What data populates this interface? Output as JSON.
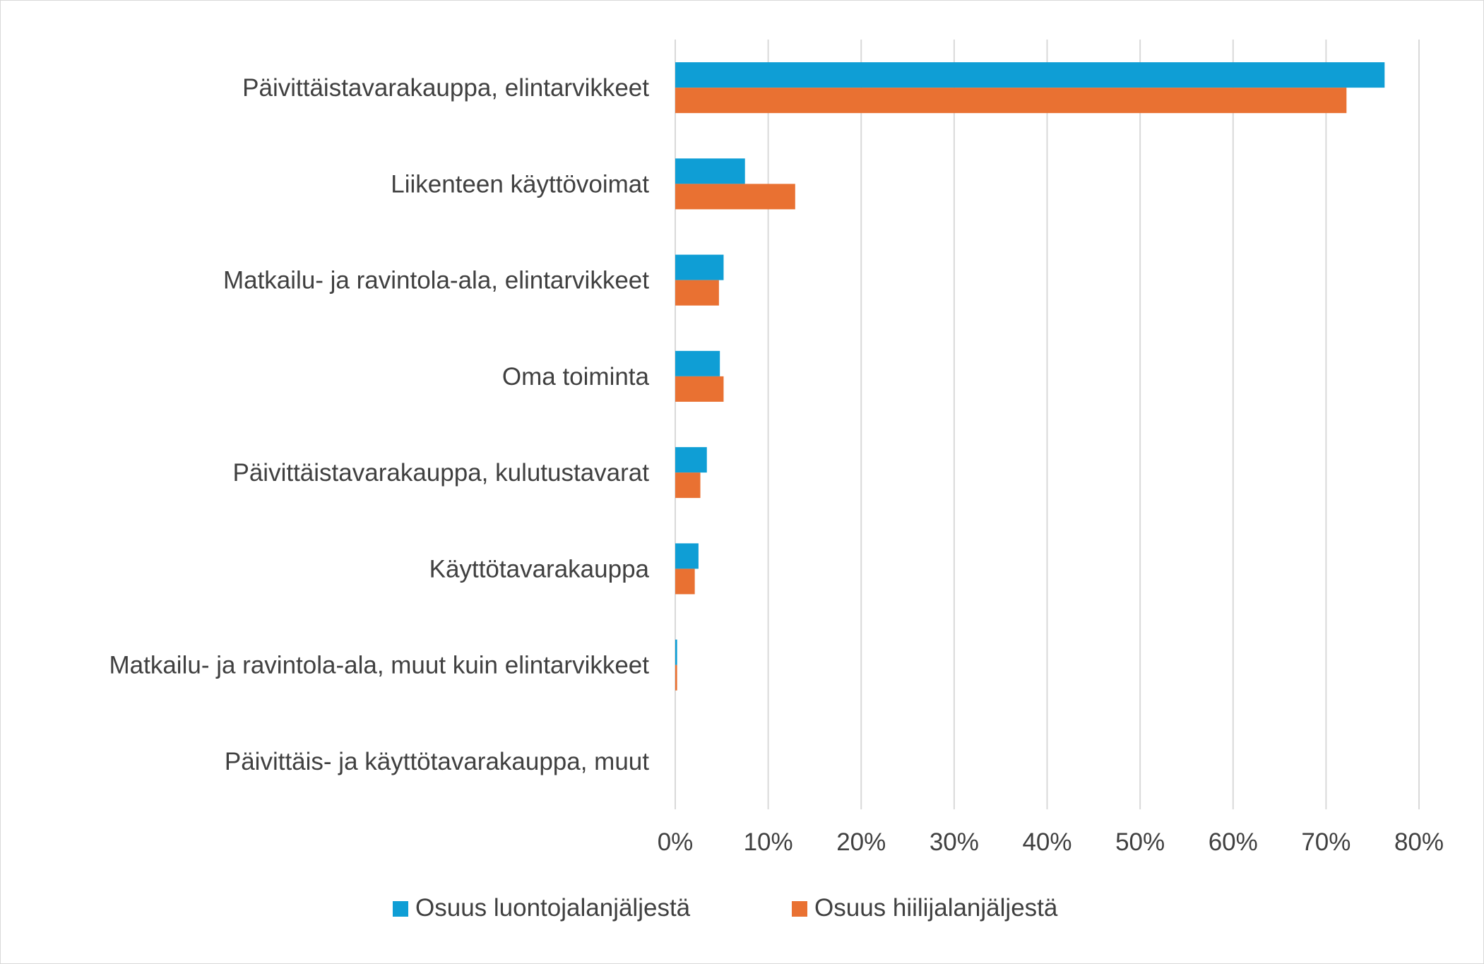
{
  "chart_data": {
    "type": "bar",
    "orientation": "horizontal",
    "categories": [
      "Päivittäistavarakauppa, elintarvikkeet",
      "Liikenteen käyttövoimat",
      "Matkailu- ja ravintola-ala, elintarvikkeet",
      "Oma toiminta",
      "Päivittäistavarakauppa, kulutustavarat",
      "Käyttötavarakauppa",
      "Matkailu- ja ravintola-ala, muut kuin elintarvikkeet",
      "Päivittäis- ja käyttötavarakauppa, muut"
    ],
    "series": [
      {
        "name": "Osuus luontojalanjäljestä",
        "color": "#0f9ed5",
        "values": [
          76.3,
          7.5,
          5.2,
          4.8,
          3.4,
          2.5,
          0.2,
          0.0
        ]
      },
      {
        "name": "Osuus hiilijalanjäljestä",
        "color": "#e97132",
        "values": [
          72.2,
          12.9,
          4.7,
          5.2,
          2.7,
          2.1,
          0.2,
          0.0
        ]
      }
    ],
    "xlim": [
      0,
      80
    ],
    "x_ticks": [
      "0%",
      "10%",
      "20%",
      "30%",
      "40%",
      "50%",
      "60%",
      "70%",
      "80%"
    ],
    "x_tick_values": [
      0,
      10,
      20,
      30,
      40,
      50,
      60,
      70,
      80
    ],
    "title": "",
    "xlabel": "",
    "ylabel": "",
    "grid": "vertical",
    "legend_position": "bottom"
  }
}
